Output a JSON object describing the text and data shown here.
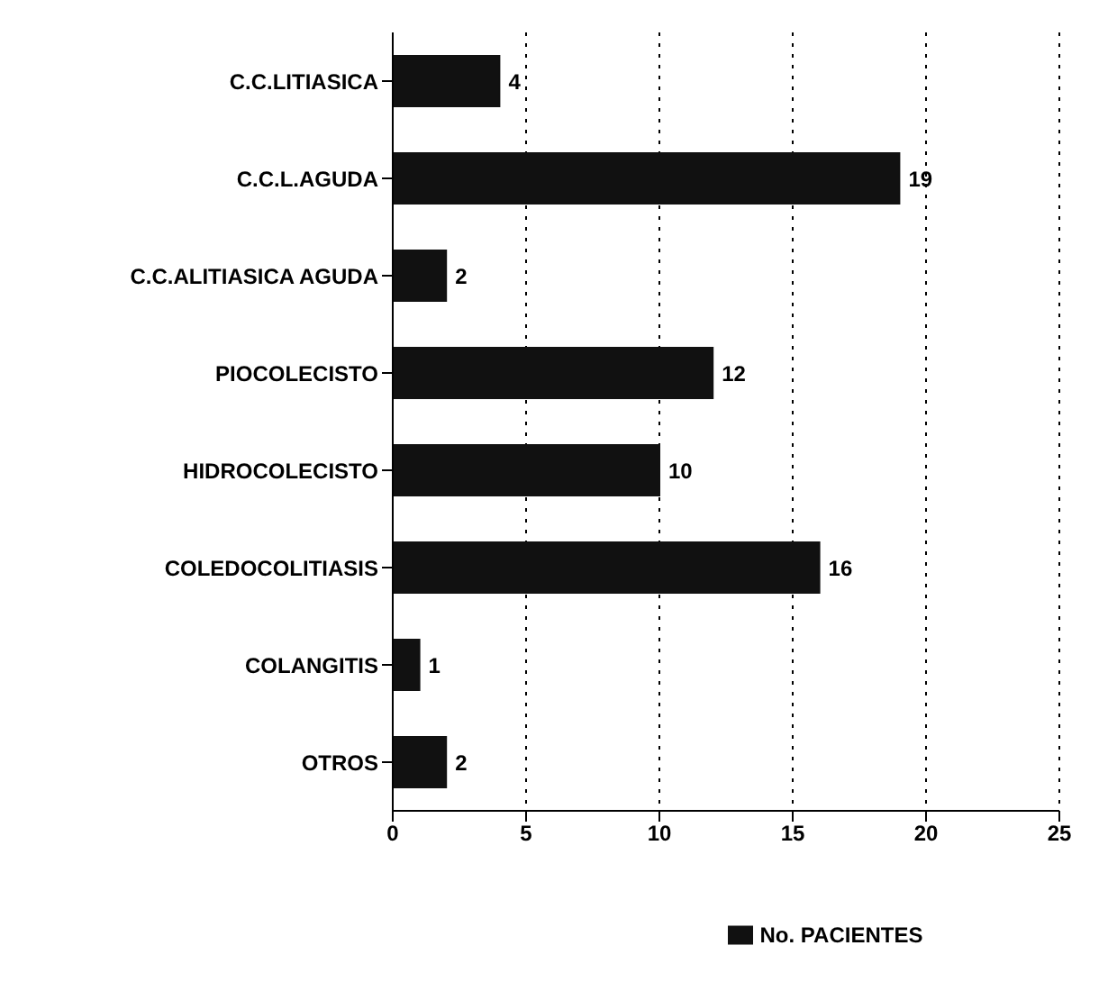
{
  "chart_data": {
    "type": "bar",
    "orientation": "horizontal",
    "categories": [
      "C.C.LITIASICA",
      "C.C.L.AGUDA",
      "C.C.ALITIASICA AGUDA",
      "PIOCOLECISTO",
      "HIDROCOLECISTO",
      "COLEDOCOLITIASIS",
      "COLANGITIS",
      "OTROS"
    ],
    "series": [
      {
        "name": "No. PACIENTES",
        "color": "#111111",
        "values": [
          4,
          19,
          2,
          12,
          10,
          16,
          1,
          2
        ]
      }
    ],
    "xlim": [
      0,
      25
    ],
    "xticks": [
      0,
      5,
      10,
      15,
      20,
      25
    ],
    "grid": "x",
    "legend": "bottom",
    "data_labels": true
  }
}
